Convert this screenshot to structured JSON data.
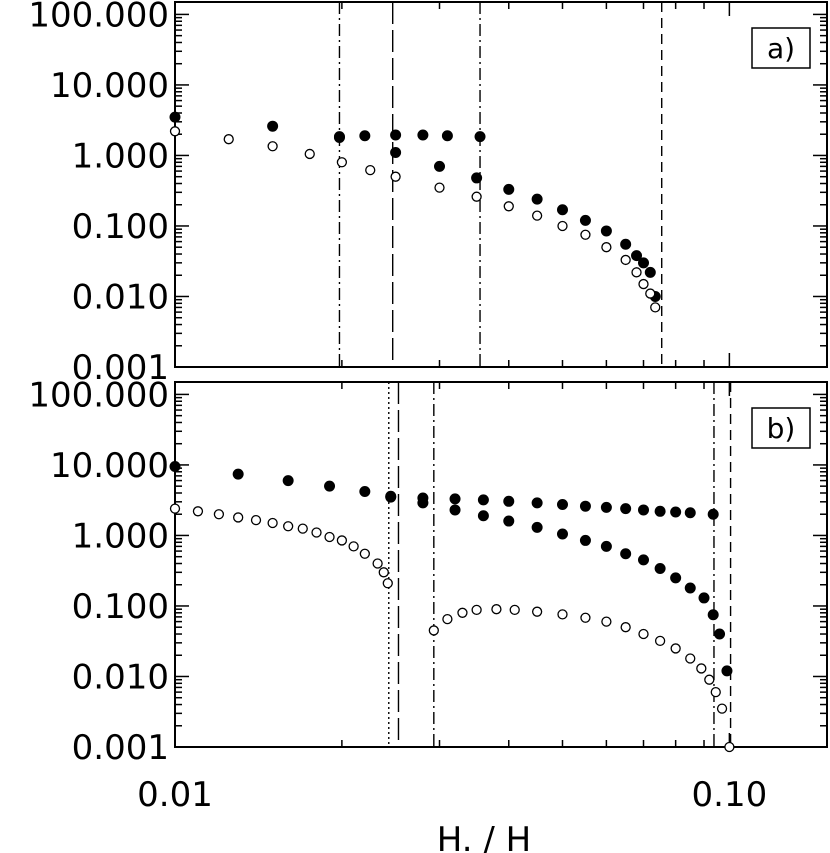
{
  "chart_data": {
    "type": "scatter",
    "xscale": "log",
    "yscale": "log",
    "xlabel": "H. / H",
    "xlim": [
      0.01,
      0.15
    ],
    "x_ticks": [
      "0.01",
      "0.10"
    ],
    "panels": [
      {
        "label": "a)",
        "ylim": [
          0.001,
          150
        ],
        "y_ticks": [
          "100.000",
          "10.000",
          "1.000",
          "0.100",
          "0.010",
          "0.001"
        ],
        "vlines": [
          {
            "x": 0.0198,
            "style": "dashdot"
          },
          {
            "x": 0.0247,
            "style": "longdash"
          },
          {
            "x": 0.0355,
            "style": "dashdot"
          },
          {
            "x": 0.0755,
            "style": "dashed"
          }
        ],
        "series": [
          {
            "marker": "filled",
            "x": [
              0.01,
              0.015,
              0.0198,
              0.025,
              0.03,
              0.035,
              0.04,
              0.045,
              0.05,
              0.055,
              0.06,
              0.065,
              0.068,
              0.07,
              0.072,
              0.0735
            ],
            "y": [
              3.5,
              2.6,
              1.8,
              1.1,
              0.7,
              0.48,
              0.33,
              0.24,
              0.17,
              0.12,
              0.085,
              0.055,
              0.038,
              0.03,
              0.022,
              0.01
            ]
          },
          {
            "marker": "filled",
            "x": [
              0.0198,
              0.022,
              0.025,
              0.028,
              0.031,
              0.0355
            ],
            "y": [
              1.85,
              1.9,
              1.95,
              1.95,
              1.9,
              1.85
            ]
          },
          {
            "marker": "open",
            "x": [
              0.01,
              0.0125,
              0.015,
              0.0175,
              0.02,
              0.0225,
              0.025,
              0.03,
              0.035,
              0.04,
              0.045,
              0.05,
              0.055,
              0.06,
              0.065,
              0.068,
              0.07,
              0.072,
              0.0735
            ],
            "y": [
              2.2,
              1.7,
              1.35,
              1.05,
              0.8,
              0.62,
              0.5,
              0.35,
              0.26,
              0.19,
              0.14,
              0.1,
              0.075,
              0.05,
              0.033,
              0.022,
              0.015,
              0.011,
              0.007
            ]
          }
        ]
      },
      {
        "label": "b)",
        "ylim": [
          0.001,
          150
        ],
        "y_ticks": [
          "100.000",
          "10.000",
          "1.000",
          "0.100",
          "0.010",
          "0.001"
        ],
        "vlines": [
          {
            "x": 0.0243,
            "style": "dotted"
          },
          {
            "x": 0.0253,
            "style": "longdash"
          },
          {
            "x": 0.0293,
            "style": "dashdot"
          },
          {
            "x": 0.0938,
            "style": "dashdot"
          },
          {
            "x": 0.1005,
            "style": "dashed"
          }
        ],
        "series": [
          {
            "marker": "filled",
            "x": [
              0.01,
              0.013,
              0.016,
              0.019,
              0.022,
              0.0245,
              0.028,
              0.032,
              0.036,
              0.04,
              0.045,
              0.05,
              0.055,
              0.06,
              0.065,
              0.07,
              0.075,
              0.08,
              0.085,
              0.09,
              0.0935,
              0.096,
              0.099
            ],
            "y": [
              9.5,
              7.4,
              6.0,
              5.0,
              4.2,
              3.6,
              2.9,
              2.3,
              1.9,
              1.6,
              1.3,
              1.05,
              0.85,
              0.7,
              0.55,
              0.45,
              0.34,
              0.25,
              0.18,
              0.13,
              0.075,
              0.04,
              0.012
            ]
          },
          {
            "marker": "filled",
            "x": [
              0.0245,
              0.028,
              0.032,
              0.036,
              0.04,
              0.045,
              0.05,
              0.055,
              0.06,
              0.065,
              0.07,
              0.075,
              0.08,
              0.085,
              0.0935
            ],
            "y": [
              3.5,
              3.4,
              3.3,
              3.2,
              3.05,
              2.9,
              2.75,
              2.6,
              2.5,
              2.4,
              2.3,
              2.2,
              2.15,
              2.1,
              2.0
            ]
          },
          {
            "marker": "open",
            "x": [
              0.01,
              0.011,
              0.012,
              0.013,
              0.014,
              0.015,
              0.016,
              0.017,
              0.018,
              0.019,
              0.02,
              0.021,
              0.022,
              0.0232,
              0.0238,
              0.0242
            ],
            "y": [
              2.4,
              2.2,
              2.0,
              1.8,
              1.65,
              1.5,
              1.35,
              1.25,
              1.1,
              0.95,
              0.85,
              0.7,
              0.55,
              0.4,
              0.3,
              0.21
            ]
          },
          {
            "marker": "open",
            "x": [
              0.0293,
              0.031,
              0.033,
              0.035,
              0.038,
              0.041,
              0.045,
              0.05,
              0.055,
              0.06,
              0.065,
              0.07,
              0.075,
              0.08,
              0.085,
              0.089,
              0.092,
              0.0945,
              0.097,
              0.1
            ],
            "y": [
              0.045,
              0.065,
              0.08,
              0.088,
              0.09,
              0.088,
              0.083,
              0.076,
              0.068,
              0.06,
              0.05,
              0.04,
              0.032,
              0.025,
              0.018,
              0.013,
              0.009,
              0.006,
              0.0035,
              0.001
            ]
          }
        ]
      }
    ]
  }
}
